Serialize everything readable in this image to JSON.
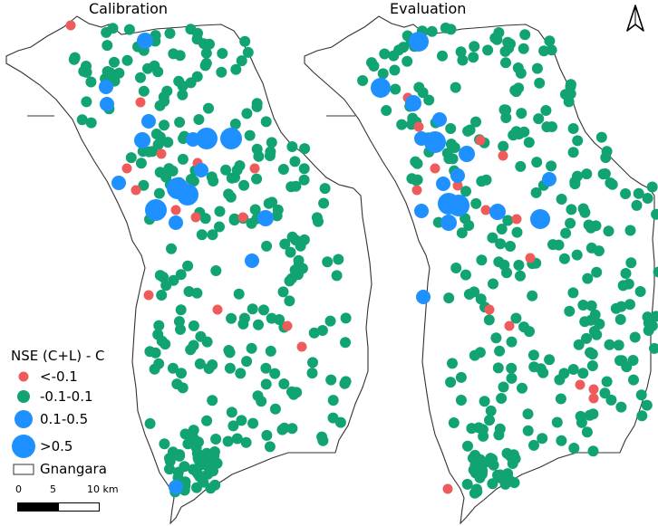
{
  "panels": [
    {
      "title": "Calibration"
    },
    {
      "title": "Evaluation"
    }
  ],
  "legend": {
    "title": "NSE (C+L) - C",
    "items": [
      {
        "label": "<-0.1",
        "color": "#ef5b5b",
        "size_rank": 1
      },
      {
        "label": "-0.1-0.1",
        "color": "#11a371",
        "size_rank": 2
      },
      {
        "label": "0.1-0.5",
        "color": "#1e90ff",
        "size_rank": 3
      },
      {
        "label": ">0.5",
        "color": "#1e90ff",
        "size_rank": 4
      }
    ],
    "boundary_label": "Gnangara"
  },
  "scalebar": {
    "labels": [
      "0",
      "5",
      "10 km"
    ]
  },
  "north_arrow": {
    "icon": "north-arrow-icon"
  },
  "colors": {
    "red": "#ef5b5b",
    "green": "#11a371",
    "blue": "#1e90ff",
    "outline": "#333333"
  }
}
